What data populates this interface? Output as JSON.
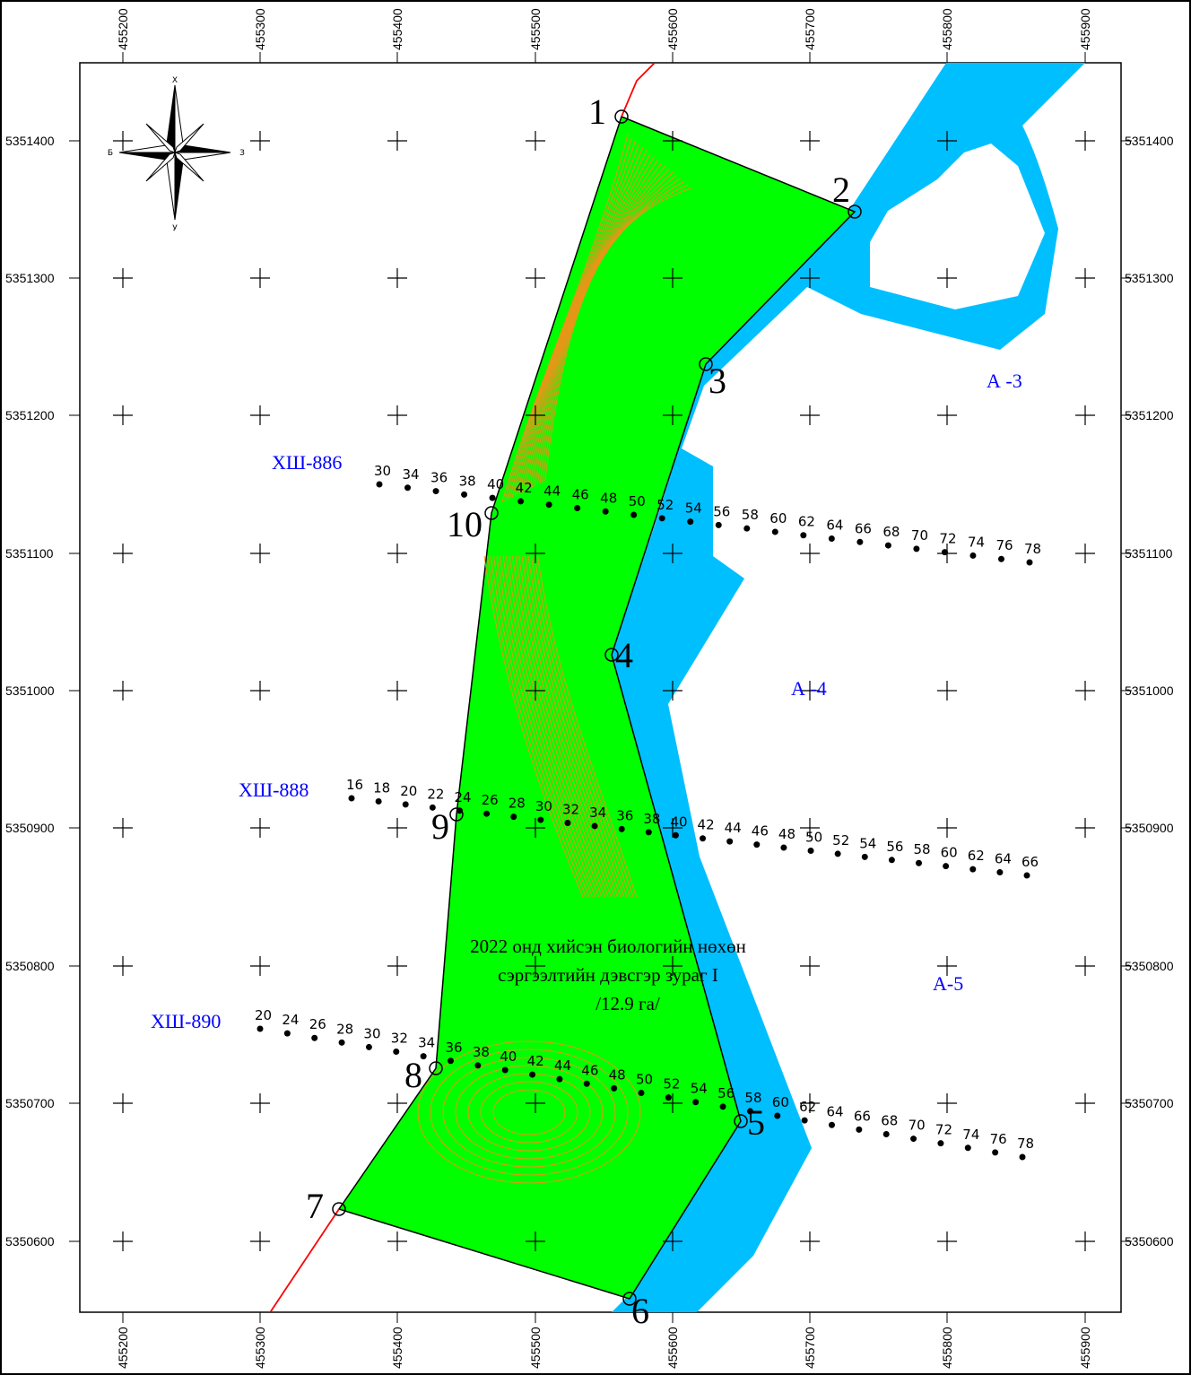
{
  "map": {
    "title_lines": [
      "2022 онд хийсэн биологийн нөхөн",
      "сэргээлтийн дэвсгэр зураг I",
      "/12.9 га/"
    ],
    "colors": {
      "area": "#00ff00",
      "water": "#00bfff",
      "road": "#ff0000",
      "contour": "#ff8c1a",
      "label_blue": "#0000ff"
    },
    "x_ticks": [
      "455200",
      "455300",
      "455400",
      "455500",
      "455600",
      "455700",
      "455800",
      "455900"
    ],
    "y_ticks": [
      "5351400",
      "5351300",
      "5351200",
      "5351100",
      "5351000",
      "5350900",
      "5350800",
      "5350700",
      "5350600"
    ],
    "compass": {
      "n": "Х",
      "s": "У",
      "w": "Б",
      "e": "З"
    },
    "vertices": [
      "1",
      "2",
      "3",
      "4",
      "5",
      "6",
      "7",
      "8",
      "9",
      "10"
    ],
    "zone_labels": [
      "А -3",
      "А -4",
      "А-5"
    ],
    "profiles": [
      {
        "name": "ХШ-886",
        "stations": [
          "30",
          "34",
          "36",
          "38",
          "40",
          "42",
          "44",
          "46",
          "48",
          "50",
          "52",
          "54",
          "56",
          "58",
          "60",
          "62",
          "64",
          "66",
          "68",
          "70",
          "72",
          "74",
          "76",
          "78"
        ]
      },
      {
        "name": "ХШ-888",
        "stations": [
          "16",
          "18",
          "20",
          "22",
          "24",
          "26",
          "28",
          "30",
          "32",
          "34",
          "36",
          "38",
          "40",
          "42",
          "44",
          "46",
          "48",
          "50",
          "52",
          "54",
          "56",
          "58",
          "60",
          "62",
          "64",
          "66"
        ]
      },
      {
        "name": "ХШ-890",
        "stations": [
          "20",
          "24",
          "26",
          "28",
          "30",
          "32",
          "34",
          "36",
          "38",
          "40",
          "42",
          "44",
          "46",
          "48",
          "50",
          "52",
          "54",
          "56",
          "58",
          "60",
          "62",
          "64",
          "66",
          "68",
          "70",
          "72",
          "74",
          "76",
          "78"
        ]
      }
    ]
  }
}
